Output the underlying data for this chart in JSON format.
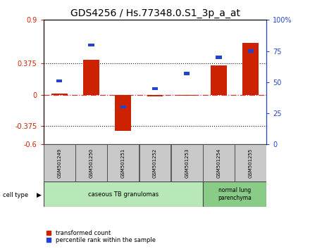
{
  "title": "GDS4256 / Hs.77348.0.S1_3p_a_at",
  "samples": [
    "GSM501249",
    "GSM501250",
    "GSM501251",
    "GSM501252",
    "GSM501253",
    "GSM501254",
    "GSM501255"
  ],
  "red_values": [
    0.01,
    0.42,
    -0.44,
    -0.02,
    -0.01,
    0.35,
    0.62
  ],
  "blue_values_pct": [
    51,
    80,
    30,
    45,
    57,
    70,
    75
  ],
  "ylim_left": [
    -0.6,
    0.9
  ],
  "ylim_right": [
    0,
    100
  ],
  "yticks_left": [
    -0.6,
    -0.375,
    0,
    0.375,
    0.9
  ],
  "yticks_right": [
    0,
    25,
    50,
    75,
    100
  ],
  "ytick_labels_right": [
    "0",
    "25",
    "50",
    "75",
    "100%"
  ],
  "hlines": [
    0.375,
    -0.375
  ],
  "zero_line": 0,
  "red_color": "#cc2200",
  "blue_color": "#2244cc",
  "dashed_line_color": "#cc3333",
  "dotted_line_color": "#111111",
  "bg_plot": "#ffffff",
  "bg_label_gray": "#c8c8c8",
  "bg_label_green1": "#b8e8b8",
  "bg_label_green2": "#88cc88",
  "group1_label": "caseous TB granulomas",
  "group1_samples": [
    0,
    1,
    2,
    3,
    4
  ],
  "group2_label": "normal lung\nparenchyma",
  "group2_samples": [
    5,
    6
  ],
  "cell_type_label": "cell type",
  "legend1": "transformed count",
  "legend2": "percentile rank within the sample",
  "title_fontsize": 10,
  "tick_fontsize": 7,
  "sample_fontsize": 5,
  "group_fontsize": 6,
  "legend_fontsize": 6
}
